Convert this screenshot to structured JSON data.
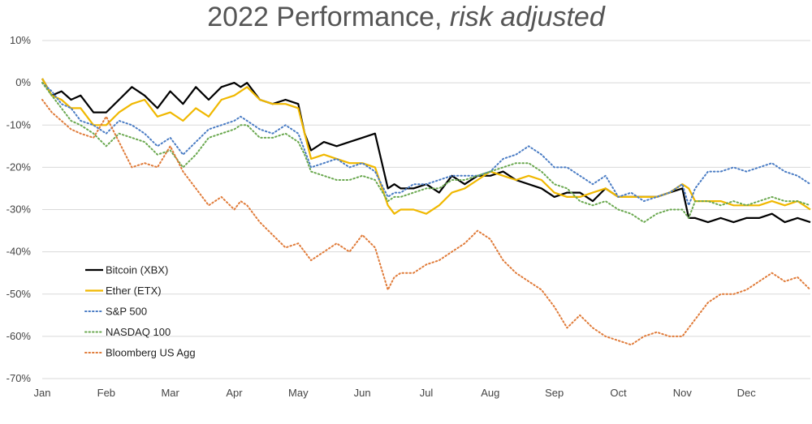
{
  "chart_data": {
    "type": "line",
    "title": "2022 Performance, ",
    "title_italic": "risk adjusted",
    "xlabel": "",
    "ylabel": "",
    "x_ticks": [
      "Jan",
      "Feb",
      "Mar",
      "Apr",
      "May",
      "Jun",
      "Jul",
      "Aug",
      "Sep",
      "Oct",
      "Nov",
      "Dec"
    ],
    "y_ticks": [
      "10%",
      "0%",
      "-10%",
      "-20%",
      "-30%",
      "-40%",
      "-50%",
      "-60%",
      "-70%"
    ],
    "xlim": [
      0,
      12
    ],
    "ylim": [
      -70,
      10
    ],
    "grid": true,
    "legend_position": "bottom-left",
    "series": [
      {
        "name": "Bitcoin (XBX)",
        "color": "#000000",
        "dash": "solid",
        "x": [
          0,
          0.15,
          0.3,
          0.45,
          0.6,
          0.8,
          1,
          1.2,
          1.4,
          1.6,
          1.8,
          2,
          2.2,
          2.4,
          2.6,
          2.8,
          3,
          3.1,
          3.2,
          3.4,
          3.6,
          3.8,
          4,
          4.1,
          4.2,
          4.4,
          4.6,
          4.8,
          5,
          5.2,
          5.4,
          5.5,
          5.6,
          5.8,
          6,
          6.2,
          6.4,
          6.6,
          6.8,
          7,
          7.2,
          7.4,
          7.6,
          7.8,
          8,
          8.2,
          8.4,
          8.6,
          8.8,
          9,
          9.2,
          9.4,
          9.6,
          9.8,
          10,
          10.1,
          10.2,
          10.4,
          10.6,
          10.8,
          11,
          11.2,
          11.4,
          11.6,
          11.8,
          12
        ],
        "y": [
          1,
          -3,
          -2,
          -4,
          -3,
          -7,
          -7,
          -4,
          -1,
          -3,
          -6,
          -2,
          -5,
          -1,
          -4,
          -1,
          0,
          -1,
          0,
          -4,
          -5,
          -4,
          -5,
          -12,
          -16,
          -14,
          -15,
          -14,
          -13,
          -12,
          -25,
          -24,
          -25,
          -25,
          -24,
          -26,
          -22,
          -24,
          -22,
          -22,
          -21,
          -23,
          -24,
          -25,
          -27,
          -26,
          -26,
          -28,
          -25,
          -27,
          -27,
          -27,
          -27,
          -26,
          -25,
          -32,
          -32,
          -33,
          -32,
          -33,
          -32,
          -32,
          -31,
          -33,
          -32,
          -33
        ]
      },
      {
        "name": "Ether (ETX)",
        "color": "#f0b800",
        "dash": "solid",
        "x": [
          0,
          0.15,
          0.3,
          0.45,
          0.6,
          0.8,
          1,
          1.2,
          1.4,
          1.6,
          1.8,
          2,
          2.2,
          2.4,
          2.6,
          2.8,
          3,
          3.1,
          3.2,
          3.4,
          3.6,
          3.8,
          4,
          4.1,
          4.2,
          4.4,
          4.6,
          4.8,
          5,
          5.2,
          5.4,
          5.5,
          5.6,
          5.8,
          6,
          6.2,
          6.4,
          6.6,
          6.8,
          7,
          7.2,
          7.4,
          7.6,
          7.8,
          8,
          8.2,
          8.4,
          8.6,
          8.8,
          9,
          9.2,
          9.4,
          9.6,
          9.8,
          10,
          10.1,
          10.2,
          10.4,
          10.6,
          10.8,
          11,
          11.2,
          11.4,
          11.6,
          11.8,
          12
        ],
        "y": [
          1,
          -3,
          -4,
          -6,
          -6,
          -10,
          -10,
          -7,
          -5,
          -4,
          -8,
          -7,
          -9,
          -6,
          -8,
          -4,
          -3,
          -2,
          -1,
          -4,
          -5,
          -5,
          -6,
          -12,
          -18,
          -17,
          -18,
          -19,
          -19,
          -20,
          -29,
          -31,
          -30,
          -30,
          -31,
          -29,
          -26,
          -25,
          -23,
          -21,
          -22,
          -23,
          -22,
          -23,
          -26,
          -27,
          -27,
          -26,
          -25,
          -27,
          -27,
          -27,
          -27,
          -26,
          -24,
          -25,
          -28,
          -28,
          -28,
          -29,
          -29,
          -29,
          -28,
          -29,
          -28,
          -30
        ]
      },
      {
        "name": "S&P 500",
        "color": "#4a7cc4",
        "dash": "dotted",
        "x": [
          0,
          0.15,
          0.3,
          0.45,
          0.6,
          0.8,
          1,
          1.2,
          1.4,
          1.6,
          1.8,
          2,
          2.2,
          2.4,
          2.6,
          2.8,
          3,
          3.1,
          3.2,
          3.4,
          3.6,
          3.8,
          4,
          4.1,
          4.2,
          4.4,
          4.6,
          4.8,
          5,
          5.2,
          5.4,
          5.5,
          5.6,
          5.8,
          6,
          6.2,
          6.4,
          6.6,
          6.8,
          7,
          7.2,
          7.4,
          7.6,
          7.8,
          8,
          8.2,
          8.4,
          8.6,
          8.8,
          9,
          9.2,
          9.4,
          9.6,
          9.8,
          10,
          10.1,
          10.2,
          10.4,
          10.6,
          10.8,
          11,
          11.2,
          11.4,
          11.6,
          11.8,
          12
        ],
        "y": [
          0,
          -2,
          -5,
          -6,
          -9,
          -10,
          -12,
          -9,
          -10,
          -12,
          -15,
          -13,
          -17,
          -14,
          -11,
          -10,
          -9,
          -8,
          -9,
          -11,
          -12,
          -10,
          -12,
          -16,
          -20,
          -19,
          -18,
          -20,
          -19,
          -21,
          -27,
          -26,
          -26,
          -24,
          -24,
          -23,
          -22,
          -22,
          -22,
          -21,
          -18,
          -17,
          -15,
          -17,
          -20,
          -20,
          -22,
          -24,
          -22,
          -27,
          -26,
          -28,
          -27,
          -26,
          -24,
          -29,
          -25,
          -21,
          -21,
          -20,
          -21,
          -20,
          -19,
          -21,
          -22,
          -24
        ]
      },
      {
        "name": "NASDAQ 100",
        "color": "#6aa84f",
        "dash": "dotted",
        "x": [
          0,
          0.15,
          0.3,
          0.45,
          0.6,
          0.8,
          1,
          1.2,
          1.4,
          1.6,
          1.8,
          2,
          2.2,
          2.4,
          2.6,
          2.8,
          3,
          3.1,
          3.2,
          3.4,
          3.6,
          3.8,
          4,
          4.1,
          4.2,
          4.4,
          4.6,
          4.8,
          5,
          5.2,
          5.4,
          5.5,
          5.6,
          5.8,
          6,
          6.2,
          6.4,
          6.6,
          6.8,
          7,
          7.2,
          7.4,
          7.6,
          7.8,
          8,
          8.2,
          8.4,
          8.6,
          8.8,
          9,
          9.2,
          9.4,
          9.6,
          9.8,
          10,
          10.1,
          10.2,
          10.4,
          10.6,
          10.8,
          11,
          11.2,
          11.4,
          11.6,
          11.8,
          12
        ],
        "y": [
          0,
          -3,
          -6,
          -9,
          -10,
          -12,
          -15,
          -12,
          -13,
          -14,
          -17,
          -16,
          -20,
          -17,
          -13,
          -12,
          -11,
          -10,
          -10,
          -13,
          -13,
          -12,
          -14,
          -17,
          -21,
          -22,
          -23,
          -23,
          -22,
          -23,
          -28,
          -27,
          -27,
          -26,
          -25,
          -25,
          -23,
          -23,
          -22,
          -21,
          -20,
          -19,
          -19,
          -21,
          -24,
          -25,
          -28,
          -29,
          -28,
          -30,
          -31,
          -33,
          -31,
          -30,
          -30,
          -32,
          -28,
          -28,
          -29,
          -28,
          -29,
          -28,
          -27,
          -28,
          -28,
          -29
        ]
      },
      {
        "name": "Bloomberg US Agg",
        "color": "#e07b39",
        "dash": "dotted",
        "x": [
          0,
          0.15,
          0.3,
          0.45,
          0.6,
          0.8,
          1,
          1.2,
          1.4,
          1.6,
          1.8,
          2,
          2.2,
          2.4,
          2.6,
          2.8,
          3,
          3.1,
          3.2,
          3.4,
          3.6,
          3.8,
          4,
          4.1,
          4.2,
          4.4,
          4.6,
          4.8,
          5,
          5.2,
          5.4,
          5.5,
          5.6,
          5.8,
          6,
          6.2,
          6.4,
          6.6,
          6.8,
          7,
          7.2,
          7.4,
          7.6,
          7.8,
          8,
          8.2,
          8.4,
          8.6,
          8.8,
          9,
          9.2,
          9.4,
          9.6,
          9.8,
          10,
          10.1,
          10.2,
          10.4,
          10.6,
          10.8,
          11,
          11.2,
          11.4,
          11.6,
          11.8,
          12
        ],
        "y": [
          -4,
          -7,
          -9,
          -11,
          -12,
          -13,
          -8,
          -14,
          -20,
          -19,
          -20,
          -15,
          -21,
          -25,
          -29,
          -27,
          -30,
          -28,
          -29,
          -33,
          -36,
          -39,
          -38,
          -40,
          -42,
          -40,
          -38,
          -40,
          -36,
          -39,
          -49,
          -46,
          -45,
          -45,
          -43,
          -42,
          -40,
          -38,
          -35,
          -37,
          -42,
          -45,
          -47,
          -49,
          -53,
          -58,
          -55,
          -58,
          -60,
          -61,
          -62,
          -60,
          -59,
          -60,
          -60,
          -58,
          -56,
          -52,
          -50,
          -50,
          -49,
          -47,
          -45,
          -47,
          -46,
          -49
        ]
      }
    ]
  }
}
